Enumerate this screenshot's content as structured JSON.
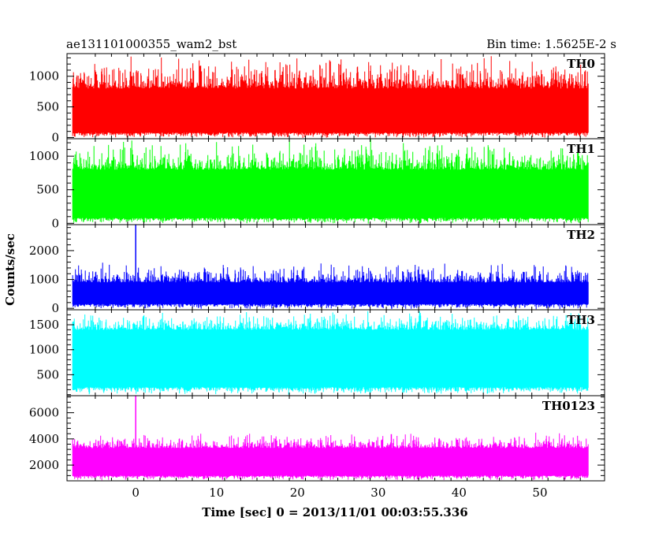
{
  "header": {
    "title": "ae131101000355_wam2_bst",
    "bin_time": "Bin time: 1.5625E-2 s"
  },
  "chart_data": {
    "type": "line",
    "xlabel": "Time [sec] 0 = 2013/11/01 00:03:55.336",
    "ylabel": "Counts/sec",
    "xlim": [
      -8.5,
      58
    ],
    "x_ticks": [
      0,
      10,
      20,
      30,
      40,
      50
    ],
    "time_range": [
      -7.8,
      56
    ],
    "panels": [
      {
        "name": "TH0",
        "color": "#ff0000",
        "ylim": [
          -20,
          1370
        ],
        "yticks": [
          0,
          500,
          1000
        ],
        "baseline_band": [
          80,
          800
        ],
        "noise_peak": 1370,
        "spikes": []
      },
      {
        "name": "TH1",
        "color": "#00ff00",
        "ylim": [
          -20,
          1260
        ],
        "yticks": [
          0,
          500,
          1000
        ],
        "baseline_band": [
          80,
          800
        ],
        "noise_peak": 1260,
        "spikes": []
      },
      {
        "name": "TH2",
        "color": "#0000ff",
        "ylim": [
          -50,
          2900
        ],
        "yticks": [
          0,
          1000,
          2000
        ],
        "baseline_band": [
          150,
          900
        ],
        "noise_peak": 1600,
        "spikes": [
          [
            0.0,
            2900
          ]
        ]
      },
      {
        "name": "TH3",
        "color": "#00ffff",
        "ylim": [
          80,
          1800
        ],
        "yticks": [
          500,
          1000,
          1500
        ],
        "baseline_band": [
          250,
          1400
        ],
        "noise_peak": 1800,
        "spikes": []
      },
      {
        "name": "TH0123",
        "color": "#ff00ff",
        "ylim": [
          800,
          7300
        ],
        "yticks": [
          2000,
          4000,
          6000
        ],
        "baseline_band": [
          1200,
          3300
        ],
        "noise_peak": 4500,
        "spikes": [
          [
            0.0,
            7300
          ]
        ]
      }
    ]
  }
}
